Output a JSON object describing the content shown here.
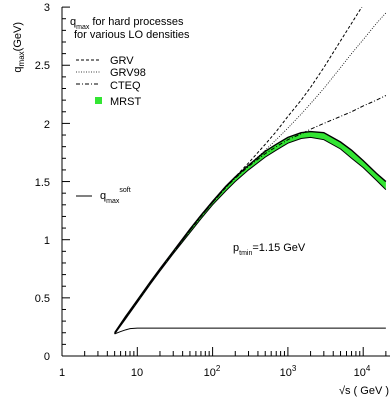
{
  "chart_data": {
    "type": "line",
    "ylabel": {
      "base": "q",
      "sub": "max",
      "rest": "(GeV)"
    },
    "xlabel": "√s ( GeV )",
    "xscale": "log",
    "xlim": [
      1,
      20000
    ],
    "ylim": [
      0,
      3
    ],
    "yticks": [
      {
        "v": 0,
        "label": "0"
      },
      {
        "v": 0.5,
        "label": "0.5"
      },
      {
        "v": 1,
        "label": "1"
      },
      {
        "v": 1.5,
        "label": "1.5"
      },
      {
        "v": 2,
        "label": "2"
      },
      {
        "v": 2.5,
        "label": "2.5"
      },
      {
        "v": 3,
        "label": "3"
      }
    ],
    "xticks": [
      {
        "v": 1,
        "base": "1",
        "exp": ""
      },
      {
        "v": 10,
        "base": "10",
        "exp": ""
      },
      {
        "v": 100,
        "base": "10",
        "exp": "2"
      },
      {
        "v": 1000,
        "base": "10",
        "exp": "3"
      },
      {
        "v": 10000,
        "base": "10",
        "exp": "4"
      }
    ],
    "legend_title": {
      "q": "q",
      "sub": "max",
      "line1": "for hard processes",
      "line2": "for various LO densities"
    },
    "series": [
      {
        "name": "GRV",
        "style": "dashed",
        "x": [
          5,
          7,
          10,
          15,
          20,
          30,
          50,
          70,
          100,
          150,
          200,
          300,
          500,
          700,
          1000,
          1500,
          2000,
          3000,
          5000,
          7000,
          10000,
          12000
        ],
        "y": [
          0.19,
          0.33,
          0.47,
          0.63,
          0.74,
          0.89,
          1.08,
          1.2,
          1.32,
          1.45,
          1.54,
          1.66,
          1.82,
          1.93,
          2.06,
          2.2,
          2.31,
          2.48,
          2.71,
          2.86,
          3.02,
          3.08
        ]
      },
      {
        "name": "GRV98",
        "style": "dotted",
        "x": [
          5,
          7,
          10,
          15,
          20,
          30,
          50,
          70,
          100,
          150,
          200,
          300,
          500,
          700,
          1000,
          1500,
          2000,
          3000,
          5000,
          7000,
          10000,
          15000,
          20000
        ],
        "y": [
          0.19,
          0.33,
          0.47,
          0.63,
          0.74,
          0.89,
          1.08,
          1.2,
          1.32,
          1.45,
          1.53,
          1.64,
          1.77,
          1.86,
          1.96,
          2.08,
          2.17,
          2.3,
          2.48,
          2.6,
          2.72,
          2.86,
          2.95
        ]
      },
      {
        "name": "CTEQ",
        "style": "dashdot",
        "x": [
          5,
          7,
          10,
          15,
          20,
          30,
          50,
          70,
          100,
          150,
          200,
          300,
          500,
          700,
          1000,
          1500,
          2000,
          3000,
          5000,
          7000,
          10000,
          15000,
          20000
        ],
        "y": [
          0.19,
          0.33,
          0.47,
          0.63,
          0.74,
          0.89,
          1.08,
          1.2,
          1.32,
          1.45,
          1.53,
          1.63,
          1.74,
          1.8,
          1.86,
          1.91,
          1.95,
          2.0,
          2.06,
          2.1,
          2.15,
          2.2,
          2.24
        ]
      },
      {
        "name": "MRST",
        "style": "band",
        "x": [
          5,
          7,
          10,
          15,
          20,
          30,
          50,
          70,
          100,
          150,
          200,
          300,
          500,
          700,
          1000,
          1500,
          2000,
          3000,
          5000,
          7000,
          10000,
          15000,
          20000
        ],
        "y_low": [
          0.19,
          0.32,
          0.46,
          0.62,
          0.73,
          0.88,
          1.06,
          1.18,
          1.3,
          1.42,
          1.5,
          1.6,
          1.71,
          1.77,
          1.83,
          1.87,
          1.88,
          1.86,
          1.78,
          1.7,
          1.62,
          1.51,
          1.43
        ],
        "y_high": [
          0.2,
          0.34,
          0.48,
          0.64,
          0.75,
          0.9,
          1.09,
          1.21,
          1.33,
          1.46,
          1.54,
          1.64,
          1.76,
          1.82,
          1.88,
          1.92,
          1.93,
          1.92,
          1.84,
          1.77,
          1.68,
          1.57,
          1.5
        ]
      },
      {
        "name": "",
        "style": "solid",
        "x": [
          5,
          6,
          7,
          8,
          10,
          15,
          20,
          50,
          100,
          1000,
          10000,
          20000
        ],
        "y": [
          0.19,
          0.21,
          0.225,
          0.235,
          0.24,
          0.24,
          0.24,
          0.24,
          0.24,
          0.24,
          0.24,
          0.24
        ]
      }
    ],
    "legend": {
      "placement": "top-left",
      "entries": [
        {
          "label": "GRV",
          "style": "dashed"
        },
        {
          "label": "GRV98",
          "style": "dotted"
        },
        {
          "label": "CTEQ",
          "style": "dashdot"
        },
        {
          "label": "MRST",
          "style": "band",
          "color": "#33e533"
        }
      ]
    },
    "soft_label": {
      "q": "q",
      "sub": "max",
      "sup": "soft"
    },
    "annotation": {
      "p": "p",
      "sub": "tmin",
      "rest": "=1.15 GeV"
    },
    "colors": {
      "band": "#33e533",
      "band_edge": "#000000",
      "line": "#000000"
    }
  }
}
